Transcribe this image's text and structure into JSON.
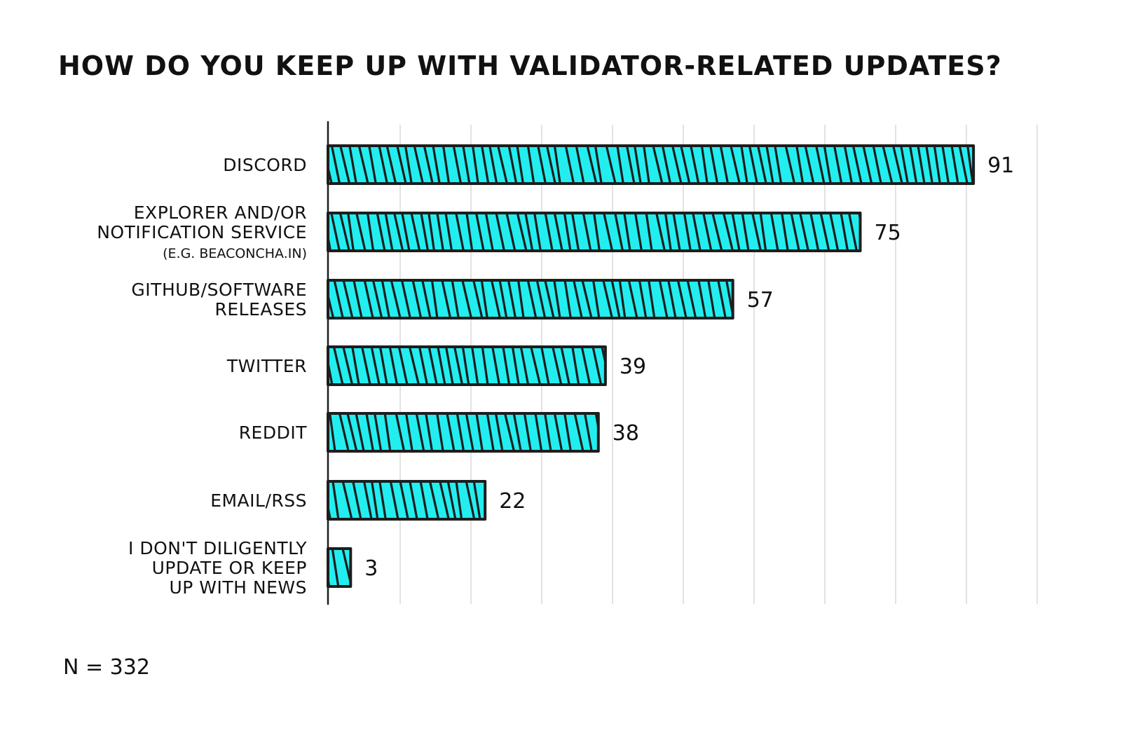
{
  "chart_data": {
    "type": "bar",
    "orientation": "horizontal",
    "title": "HOW DO YOU KEEP UP WITH VALIDATOR-RELATED UPDATES?",
    "categories": [
      [
        "DISCORD"
      ],
      [
        "EXPLORER AND/OR",
        "NOTIFICATION SERVICE",
        "(E.G. BEACONCHA.IN)"
      ],
      [
        "GITHUB/SOFTWARE",
        "RELEASES"
      ],
      [
        "TWITTER"
      ],
      [
        "REDDIT"
      ],
      [
        "EMAIL/RSS"
      ],
      [
        "I DON'T DILIGENTLY",
        "UPDATE OR KEEP",
        "UP WITH NEWS"
      ]
    ],
    "values": [
      91,
      75,
      57,
      39,
      38,
      22,
      3
    ],
    "value_labels": [
      "91",
      "75",
      "57",
      "39",
      "38",
      "22",
      "3"
    ],
    "xlim": [
      0,
      100
    ],
    "grid": true,
    "bar_color": "#22EEF0",
    "outline_color": "#1d1d1d",
    "footnote": "N = 332"
  }
}
